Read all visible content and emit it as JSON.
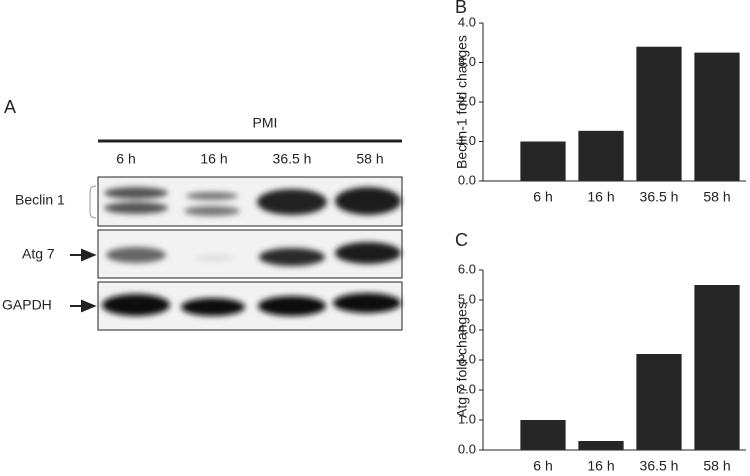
{
  "blot": {
    "panel": "A",
    "group_label": "PMI",
    "lanes": [
      "6 h",
      "16 h",
      "36.5 h",
      "58 h"
    ],
    "rows": [
      "Beclin 1",
      "Atg 7",
      "GAPDH"
    ]
  },
  "chart_data": [
    {
      "type": "bar",
      "panel": "B",
      "ylabel": "Beclin-1 fold changes",
      "categories": [
        "6 h",
        "16 h",
        "36.5 h",
        "58 h"
      ],
      "values": [
        1.0,
        1.27,
        3.4,
        3.25
      ],
      "color": "#262626",
      "ylim": [
        0,
        4
      ],
      "yticks": [
        {
          "value": 0,
          "label": "0.0"
        },
        {
          "value": 1,
          "label": "1.0"
        },
        {
          "value": 2,
          "label": "2.0"
        },
        {
          "value": 3,
          "label": "3.0"
        },
        {
          "value": 4,
          "label": "4.0"
        }
      ],
      "grid": false
    },
    {
      "type": "bar",
      "panel": "C",
      "ylabel": "Atg 7 fold changes",
      "categories": [
        "6 h",
        "16 h",
        "36.5 h",
        "58 h"
      ],
      "values": [
        1.0,
        0.3,
        3.2,
        5.5
      ],
      "color": "#262626",
      "ylim": [
        0,
        6
      ],
      "yticks": [
        {
          "value": 0,
          "label": "0.0"
        },
        {
          "value": 1,
          "label": "1.0"
        },
        {
          "value": 2,
          "label": "2.0"
        },
        {
          "value": 3,
          "label": "3.0"
        },
        {
          "value": 4,
          "label": "4.0"
        },
        {
          "value": 5,
          "label": "5.0"
        },
        {
          "value": 6,
          "label": "6.0"
        }
      ],
      "grid": false
    }
  ]
}
